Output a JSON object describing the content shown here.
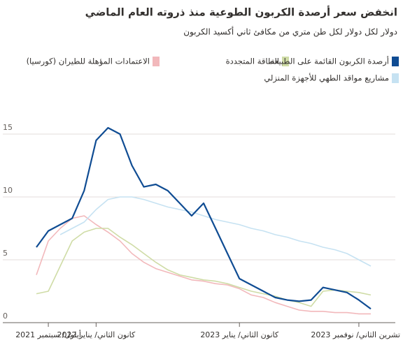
{
  "chart_data": {
    "type": "line",
    "title": "انخفض سعر أرصدة الكربون الطوعية منذ ذروته العام الماضي",
    "subtitle": "دولار لكل  دولار لكل طن متري من مكافئ ثاني أكسيد الكربون",
    "x": [
      "2021-08",
      "2021-09",
      "2021-10",
      "2021-11",
      "2021-12",
      "2022-01",
      "2022-02",
      "2022-03",
      "2022-04",
      "2022-05",
      "2022-06",
      "2022-07",
      "2022-08",
      "2022-09",
      "2022-10",
      "2022-11",
      "2022-12",
      "2023-01",
      "2023-02",
      "2023-03",
      "2023-04",
      "2023-05",
      "2023-06",
      "2023-07",
      "2023-08",
      "2023-09",
      "2023-10",
      "2023-11",
      "2023-12"
    ],
    "xlim": [
      "2021-08",
      "2023-12"
    ],
    "xticks": [
      {
        "value": "2021-09",
        "label": "أيلول/ سبتمبر 2021"
      },
      {
        "value": "2022-01",
        "label": "كانون الثاني/ يناير 2022"
      },
      {
        "value": "2023-01",
        "label": "كانون الثاني/ يناير 2023"
      },
      {
        "value": "2023-11",
        "label": "تشرين الثاني/ نوفمبر 2023"
      }
    ],
    "ylim": [
      0,
      16.5
    ],
    "yticks": [
      0,
      5,
      10,
      15
    ],
    "grid": true,
    "series": [
      {
        "name": "الاعتمادات المؤهلة للطيران (كورسيا)",
        "color": "#f2b8bb",
        "values": [
          3.8,
          6.5,
          7.5,
          8.3,
          8.5,
          7.8,
          7.2,
          6.5,
          5.5,
          4.8,
          4.3,
          4.0,
          3.7,
          3.4,
          3.3,
          3.1,
          3.0,
          2.7,
          2.2,
          2.0,
          1.6,
          1.3,
          1.0,
          0.9,
          0.9,
          0.8,
          0.8,
          0.7,
          0.7
        ]
      },
      {
        "name": "الطاقة المتجددة",
        "color": "#cfdca6",
        "values": [
          2.3,
          2.5,
          4.5,
          6.5,
          7.2,
          7.5,
          7.5,
          6.8,
          6.2,
          5.5,
          4.8,
          4.2,
          3.8,
          3.6,
          3.4,
          3.3,
          3.1,
          2.8,
          2.5,
          2.3,
          2.1,
          1.8,
          1.6,
          1.3,
          2.5,
          2.6,
          2.5,
          2.4,
          2.2
        ]
      },
      {
        "name": "مشاريع مواقد الطهي للأجهزة المنزلي",
        "color": "#c6e2f2",
        "values": [
          null,
          null,
          7.0,
          7.5,
          8.0,
          9.0,
          9.8,
          10.0,
          10.0,
          9.8,
          9.5,
          9.2,
          9.0,
          8.8,
          8.5,
          8.2,
          8.0,
          7.8,
          7.5,
          7.3,
          7.0,
          6.8,
          6.5,
          6.3,
          6.0,
          5.8,
          5.5,
          5.0,
          4.5
        ]
      },
      {
        "name": "أرصدة الكربون القائمة على الطبيعة",
        "color": "#0f4c93",
        "values": [
          6.0,
          7.3,
          7.8,
          8.3,
          10.5,
          14.5,
          15.5,
          15.0,
          12.5,
          10.8,
          11.0,
          10.5,
          9.5,
          8.5,
          9.5,
          7.5,
          5.5,
          3.5,
          3.0,
          2.5,
          2.0,
          1.8,
          1.7,
          1.8,
          2.8,
          2.6,
          2.4,
          1.8,
          1.1
        ]
      }
    ]
  }
}
